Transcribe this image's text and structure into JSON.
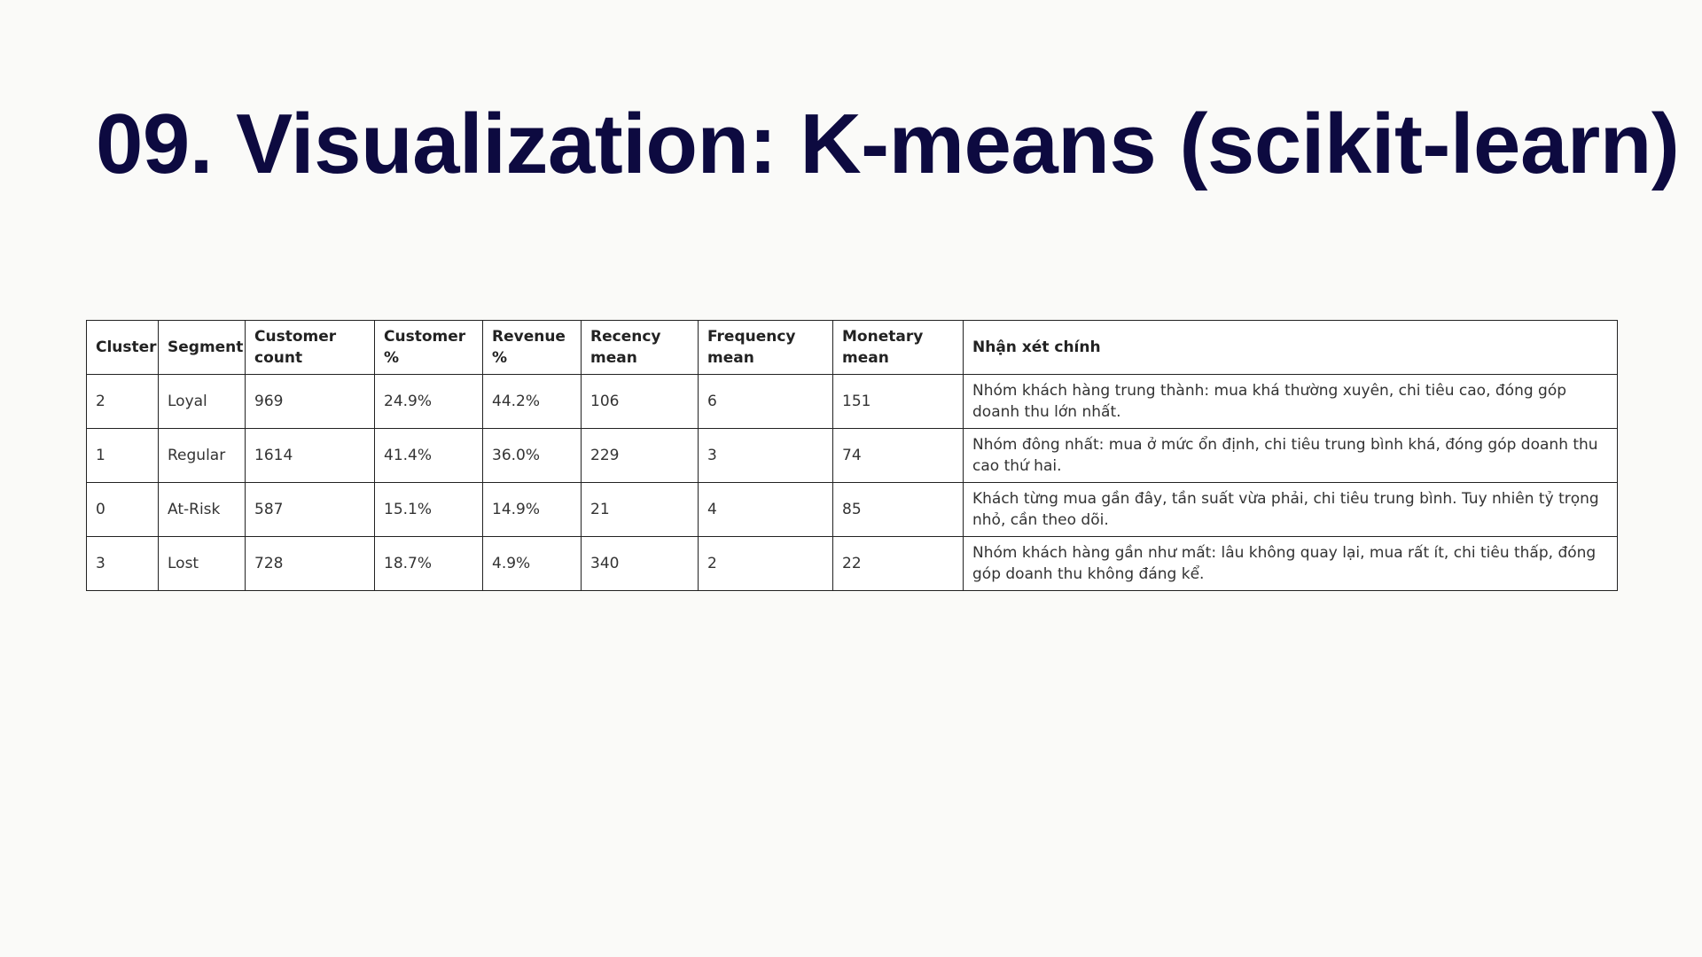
{
  "header": {
    "title": "09. Visualization: K-means (scikit-learn)"
  },
  "table": {
    "headers": [
      "Cluster",
      "Segment",
      "Customer count",
      "Customer %",
      "Revenue %",
      "Recency mean",
      "Frequency mean",
      "Monetary mean",
      "Nhận xét chính"
    ],
    "rows": [
      [
        "2",
        "Loyal",
        "969",
        "24.9%",
        "44.2%",
        "106",
        "6",
        "151",
        "Nhóm khách hàng trung thành: mua khá thường xuyên, chi tiêu cao, đóng góp doanh thu lớn nhất."
      ],
      [
        "1",
        "Regular",
        "1614",
        "41.4%",
        "36.0%",
        "229",
        "3",
        "74",
        "Nhóm đông nhất: mua ở mức ổn định, chi tiêu trung bình khá, đóng góp doanh thu cao thứ hai."
      ],
      [
        "0",
        "At-Risk",
        "587",
        "15.1%",
        "14.9%",
        "21",
        "4",
        "85",
        "Khách từng mua gần đây, tần suất vừa phải, chi tiêu trung bình. Tuy nhiên tỷ trọng nhỏ, cần theo dõi."
      ],
      [
        "3",
        "Lost",
        "728",
        "18.7%",
        "4.9%",
        "340",
        "2",
        "22",
        "Nhóm khách hàng gần như mất: lâu không quay lại, mua rất ít, chi tiêu thấp, đóng góp doanh thu không đáng kể."
      ]
    ]
  }
}
